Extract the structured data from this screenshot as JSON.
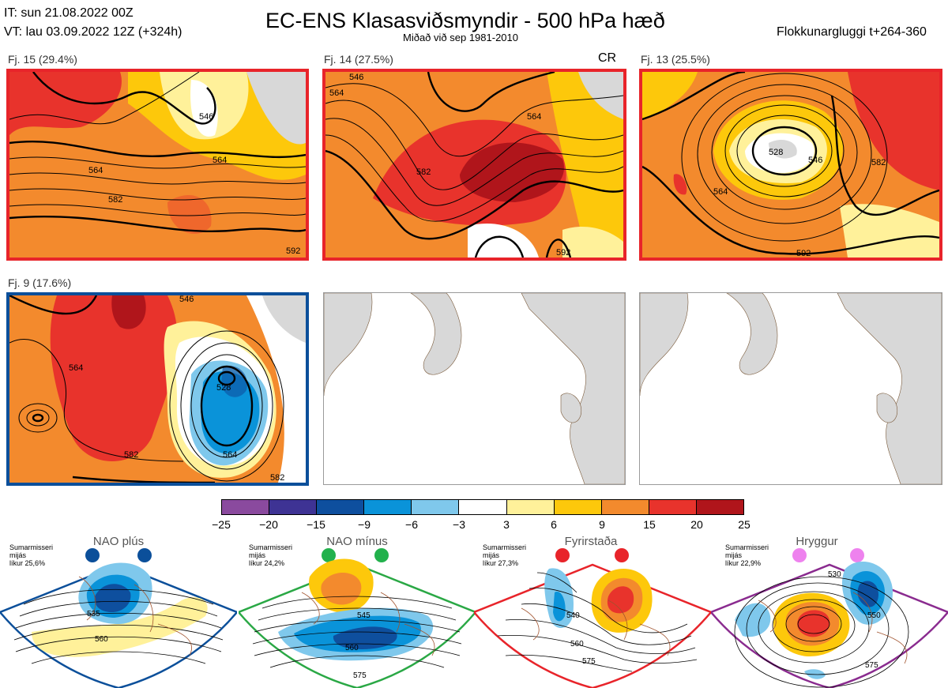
{
  "header": {
    "it_line": "IT: sun 21.08.2022 00Z",
    "vt_line": "VT: lau 03.09.2022 12Z  (+324h)",
    "title": "EC-ENS Klasasviðsmyndir - 500 hPa hæð",
    "subtitle": "Miðað við sep 1981-2010",
    "window": "Flokkunargluggi t+264-360"
  },
  "clusters": [
    {
      "label": "Fj. 15 (29.4%)",
      "tag": "",
      "frame_color": "#e8242a",
      "contours": [
        "564",
        "564",
        "546",
        "582",
        "592"
      ]
    },
    {
      "label": "Fj. 14 (27.5%)",
      "tag": "CR",
      "frame_color": "#e8242a",
      "contours": [
        "564",
        "564",
        "546",
        "582",
        "592"
      ]
    },
    {
      "label": "Fj. 13 (25.5%)",
      "tag": "",
      "frame_color": "#e8242a",
      "contours": [
        "528",
        "546",
        "564",
        "582",
        "592"
      ]
    },
    {
      "label": "Fj. 9 (17.6%)",
      "tag": "",
      "frame_color": "#0b4f9a",
      "contours": [
        "564",
        "546",
        "528",
        "582",
        "564",
        "582"
      ]
    }
  ],
  "colorbar": {
    "labels": [
      "−25",
      "−20",
      "−15",
      "−9",
      "−6",
      "−3",
      "3",
      "6",
      "9",
      "15",
      "20",
      "25"
    ],
    "colors": [
      "#8a4a9e",
      "#3e3394",
      "#0e4f9e",
      "#0a93d9",
      "#7fc8ec",
      "#ffffff",
      "#fff19a",
      "#fdc80b",
      "#f38a2d",
      "#e8332c",
      "#b0151b"
    ]
  },
  "regimes": [
    {
      "name": "NAO plús",
      "note": "Sumarmisseri\nmijás\nlíkur 25,6%",
      "color": "#0b4f9a",
      "dot_color": "#0b4f9a",
      "contours": [
        "535",
        "560"
      ]
    },
    {
      "name": "NAO mínus",
      "note": "Sumarmisseri\nmijás\nlíkur 24,2%",
      "color": "#2aa845",
      "dot_color": "#22b14c",
      "contours": [
        "545",
        "560",
        "575"
      ]
    },
    {
      "name": "Fyrirstaða",
      "note": "Sumarmisseri\nmijás\nlíkur 27,3%",
      "color": "#e8242a",
      "dot_color": "#e8242a",
      "contours": [
        "540",
        "560",
        "575"
      ]
    },
    {
      "name": "Hryggur",
      "note": "Sumarmisseri\nmijás\nlíkur 22,9%",
      "color": "#8a2b8f",
      "dot_color": "#ee82ee",
      "contours": [
        "530",
        "550",
        "575"
      ]
    }
  ]
}
